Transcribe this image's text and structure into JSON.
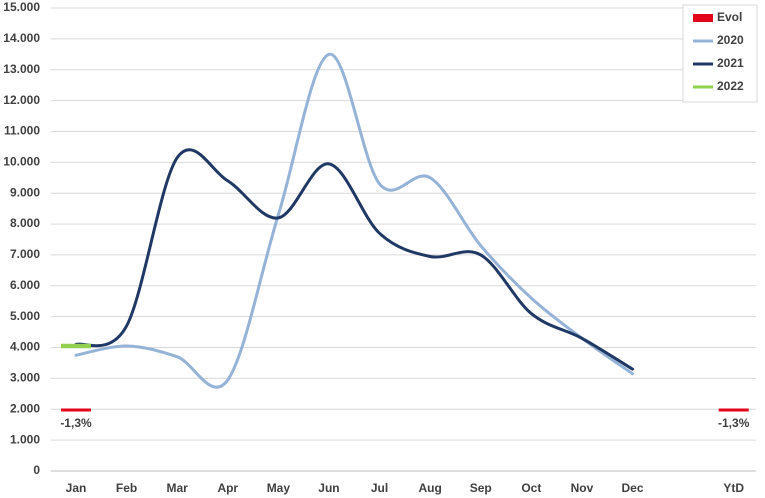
{
  "chart_data": {
    "type": "line",
    "categories": [
      "Jan",
      "Feb",
      "Mar",
      "Apr",
      "May",
      "Jun",
      "Jul",
      "Aug",
      "Sep",
      "Oct",
      "Nov",
      "Dec",
      null,
      "YtD"
    ],
    "series": [
      {
        "name": "Evol",
        "color": "#e3061b",
        "type": "marker",
        "values": [
          -1.3,
          null,
          null,
          null,
          null,
          null,
          null,
          null,
          null,
          null,
          null,
          null,
          null,
          -1.3
        ],
        "value_labels": [
          "-1,3%",
          null,
          null,
          null,
          null,
          null,
          null,
          null,
          null,
          null,
          null,
          null,
          null,
          "-1,3%"
        ]
      },
      {
        "name": "2020",
        "color": "#95b3d7",
        "values": [
          3750,
          4050,
          3700,
          2950,
          8300,
          13500,
          9300,
          9500,
          7300,
          5600,
          4300,
          3150,
          null,
          null
        ]
      },
      {
        "name": "2021",
        "color": "#1f3864",
        "values": [
          4100,
          4700,
          10150,
          9400,
          8200,
          9950,
          7700,
          6950,
          7000,
          5100,
          4300,
          3300,
          null,
          null
        ]
      },
      {
        "name": "2022",
        "color": "#92d050",
        "values": [
          4050,
          null,
          null,
          null,
          null,
          null,
          null,
          null,
          null,
          null,
          null,
          null,
          null,
          null
        ]
      }
    ],
    "ylim": [
      0,
      15000
    ],
    "yticks": [
      0,
      {
        "value": 1000,
        "label": "1.000"
      },
      {
        "value": 2000,
        "label": "2.000"
      },
      {
        "value": 3000,
        "label": "3.000"
      },
      {
        "value": 4000,
        "label": "4.000"
      },
      {
        "value": 5000,
        "label": "5.000"
      },
      {
        "value": 6000,
        "label": "6.000"
      },
      {
        "value": 7000,
        "label": "7.000"
      },
      {
        "value": 8000,
        "label": "8.000"
      },
      {
        "value": 9000,
        "label": "9.000"
      },
      {
        "value": 10000,
        "label": "10.000"
      },
      {
        "value": 11000,
        "label": "11.000"
      },
      {
        "value": 12000,
        "label": "12.000"
      },
      {
        "value": 13000,
        "label": "13.000"
      },
      {
        "value": 14000,
        "label": "14.000"
      },
      {
        "value": 15000,
        "label": "15.000"
      }
    ],
    "grid": true,
    "legend": "top-right"
  }
}
